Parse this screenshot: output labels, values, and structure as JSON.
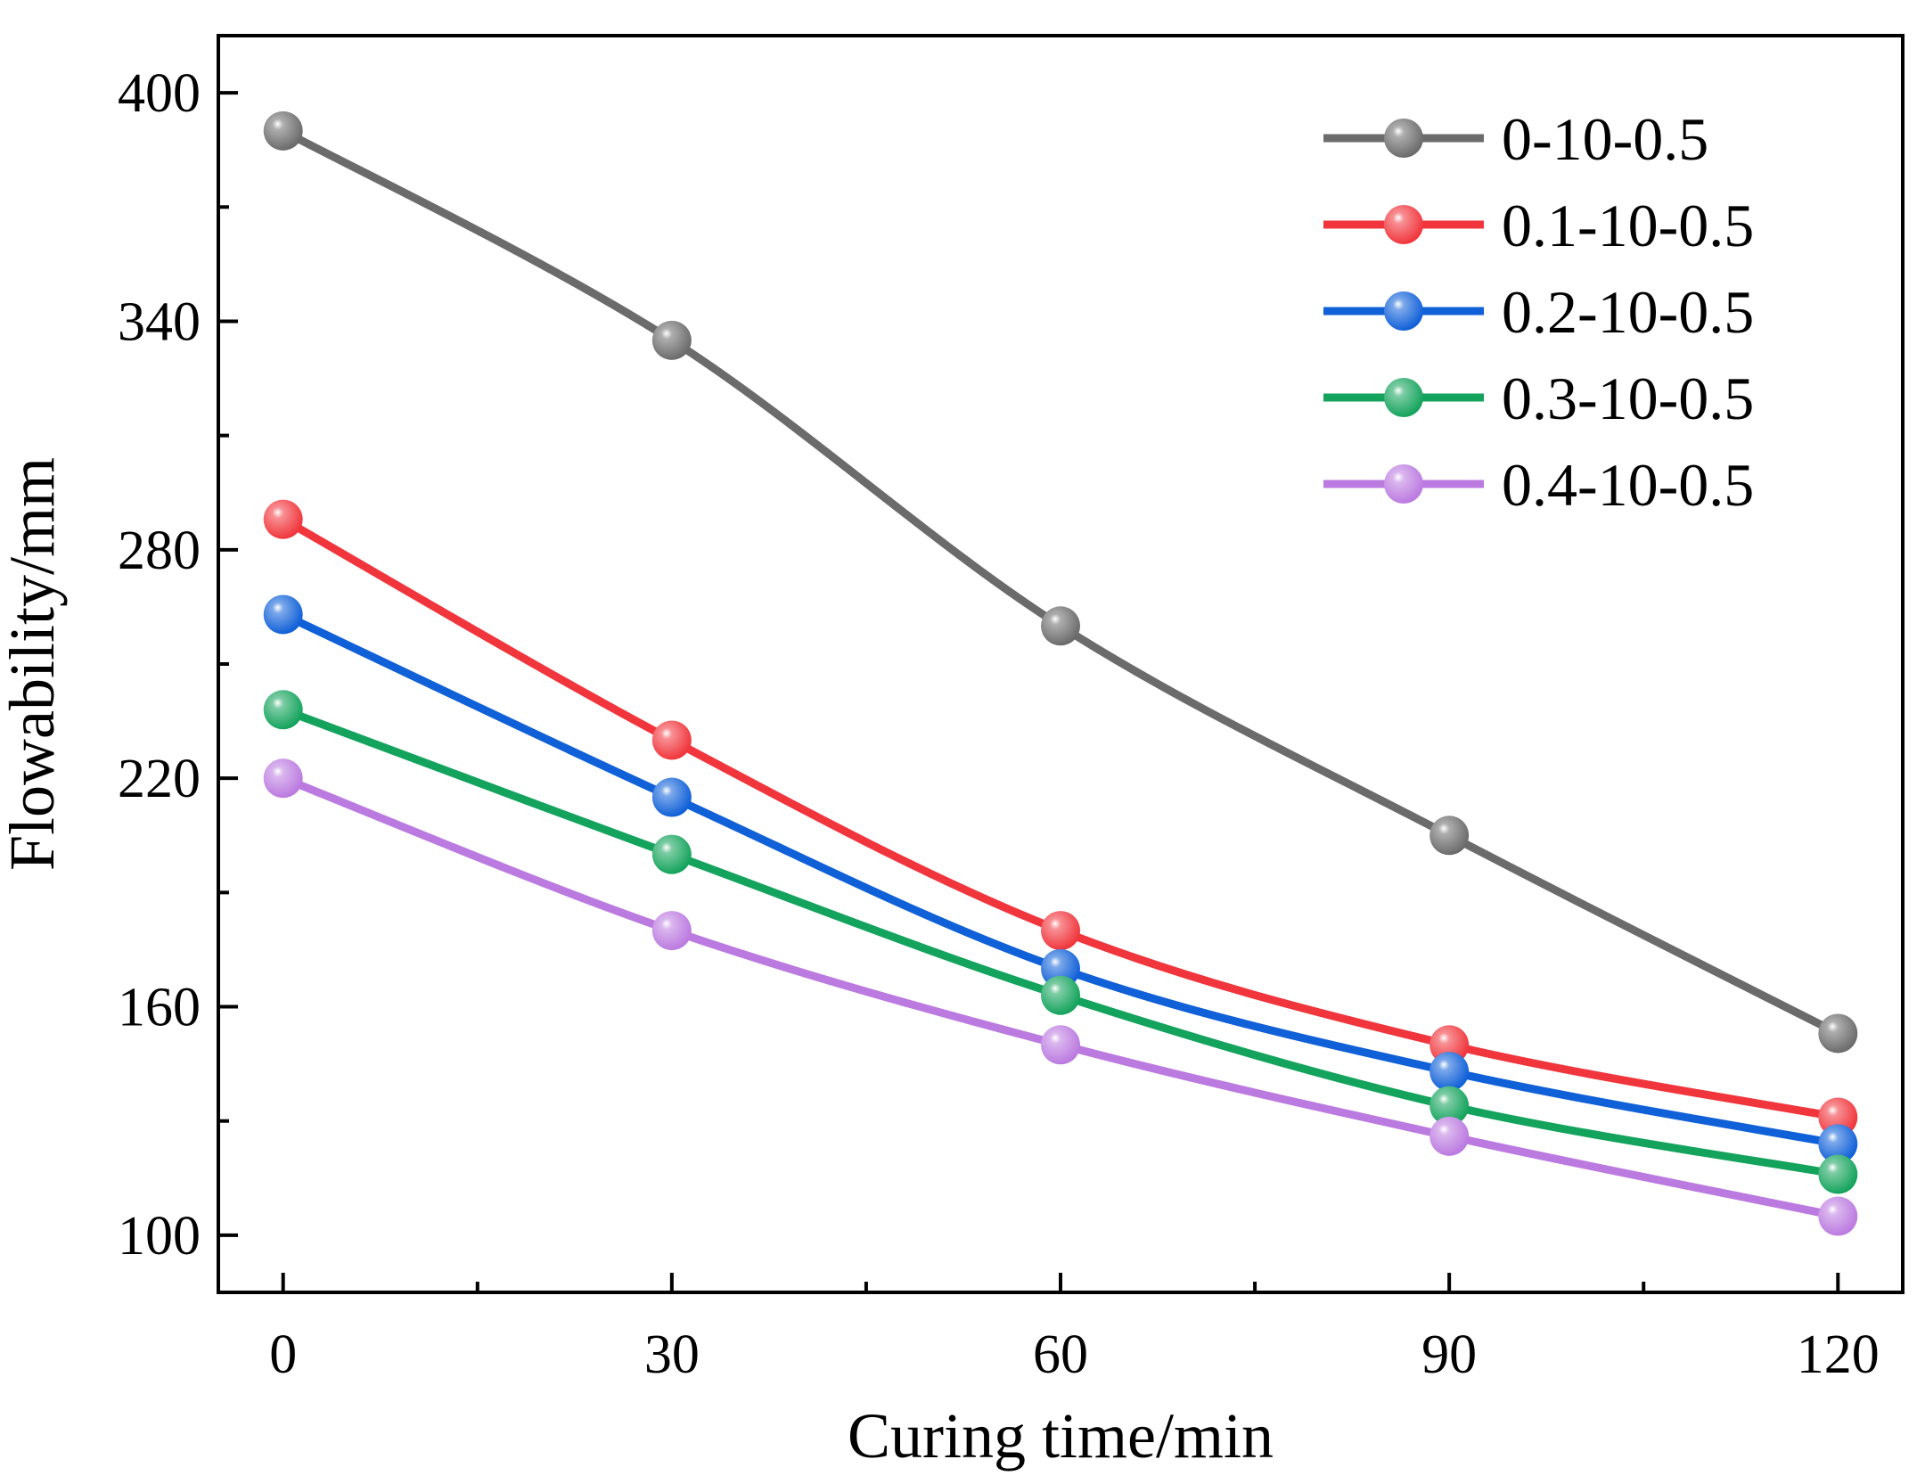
{
  "chart_data": {
    "type": "line",
    "title": "",
    "xlabel": "Curing time/min",
    "ylabel": "Flowability/mm",
    "x": [
      0,
      30,
      60,
      90,
      120
    ],
    "xlim": [
      -5,
      125
    ],
    "ylim": [
      85,
      415
    ],
    "xticks": [
      0,
      30,
      60,
      90,
      120
    ],
    "yticks": [
      100,
      160,
      220,
      280,
      340,
      400
    ],
    "grid": false,
    "legend_position": "top-right",
    "series": [
      {
        "name": "0-10-0.5",
        "color": "#6b6b6b",
        "values": [
          390,
          335,
          260,
          205,
          153
        ]
      },
      {
        "name": "0.1-10-0.5",
        "color": "#f0363c",
        "values": [
          288,
          230,
          180,
          150,
          131
        ]
      },
      {
        "name": "0.2-10-0.5",
        "color": "#1060d8",
        "values": [
          263,
          215,
          170,
          143,
          124
        ]
      },
      {
        "name": "0.3-10-0.5",
        "color": "#14a35c",
        "values": [
          238,
          200,
          163,
          134,
          116
        ]
      },
      {
        "name": "0.4-10-0.5",
        "color": "#bb7ae0",
        "values": [
          220,
          180,
          150,
          126,
          105
        ]
      }
    ]
  }
}
